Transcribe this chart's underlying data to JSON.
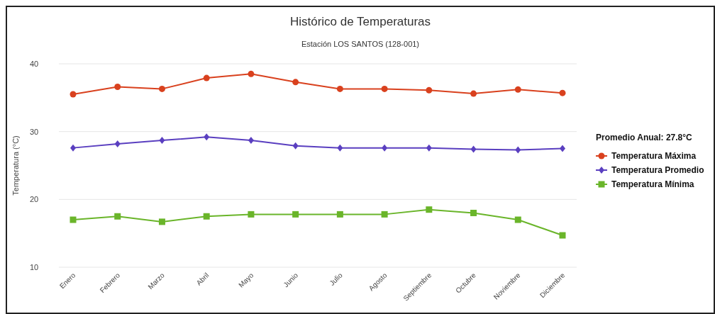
{
  "chart_data": {
    "type": "line",
    "title": "Histórico de Temperaturas",
    "subtitle": "Estación  LOS SANTOS (128-001)",
    "ylabel": "Temperatura (°C)",
    "legend_title": "Promedio Anual: 27.8°C",
    "categories": [
      "Enero",
      "Febrero",
      "Marzo",
      "Abril",
      "Mayo",
      "Junio",
      "Julio",
      "Agosto",
      "Septiembre",
      "Octubre",
      "Noviembre",
      "Diciembre"
    ],
    "series": [
      {
        "name": "Temperatura Máxima",
        "color": "#d9411e",
        "marker": "circle",
        "values": [
          35.5,
          36.6,
          36.3,
          37.9,
          38.5,
          37.3,
          36.3,
          36.3,
          36.1,
          35.6,
          36.2,
          35.7
        ]
      },
      {
        "name": "Temperatura Promedio",
        "color": "#5a3fc0",
        "marker": "diamond",
        "values": [
          27.6,
          28.2,
          28.7,
          29.2,
          28.7,
          27.9,
          27.6,
          27.6,
          27.6,
          27.4,
          27.3,
          27.5
        ]
      },
      {
        "name": "Temperatura Mínima",
        "color": "#6ab52a",
        "marker": "square",
        "values": [
          17.0,
          17.5,
          16.7,
          17.5,
          17.8,
          17.8,
          17.8,
          17.8,
          18.5,
          18.0,
          17.0,
          14.7
        ]
      }
    ],
    "ylim": [
      10,
      40
    ],
    "yticks": [
      10,
      20,
      30,
      40
    ],
    "grid": "y",
    "legend": "right",
    "line_style": "solid"
  }
}
